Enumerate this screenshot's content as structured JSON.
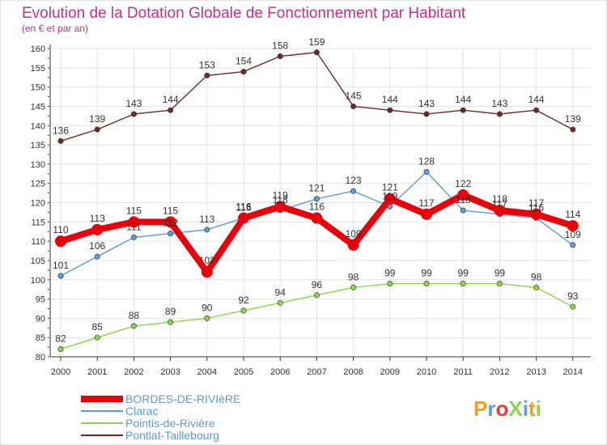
{
  "chart_data": {
    "type": "line",
    "title": "Evolution de la Dotation Globale de Fonctionnement par Habitant",
    "subtitle": "(en € et par an)",
    "xlabel": "",
    "ylabel": "",
    "ylim": [
      80,
      160
    ],
    "y_ticks": [
      80,
      85,
      90,
      95,
      100,
      105,
      110,
      115,
      120,
      125,
      130,
      135,
      140,
      145,
      150,
      155,
      160
    ],
    "grid": true,
    "legend_position": "bottom-left",
    "categories": [
      "2000",
      "2001",
      "2002",
      "2003",
      "2004",
      "2005",
      "2006",
      "2007",
      "2008",
      "2009",
      "2010",
      "2011",
      "2012",
      "2013",
      "2014"
    ],
    "series": [
      {
        "name": "Pontlat-Taillebourg",
        "color": "#6b2a2a",
        "emphasis": false,
        "values": [
          136,
          139,
          143,
          144,
          153,
          154,
          158,
          159,
          145,
          144,
          143,
          144,
          143,
          144,
          139
        ]
      },
      {
        "name": "Clarac",
        "color": "#5b9bd5",
        "emphasis": false,
        "values": [
          101,
          106,
          111,
          112,
          113,
          116,
          118,
          121,
          123,
          119,
          128,
          118,
          117,
          116,
          109
        ]
      },
      {
        "name": "Pointis-de-Rivière",
        "color": "#8fd14f",
        "emphasis": false,
        "values": [
          82,
          85,
          88,
          89,
          90,
          92,
          94,
          96,
          98,
          99,
          99,
          99,
          99,
          98,
          93
        ]
      },
      {
        "name": "BORDES-DE-RIVIèRE",
        "color": "#e8000b",
        "emphasis": true,
        "values": [
          110,
          113,
          115,
          115,
          102,
          116,
          119,
          116,
          109,
          121,
          117,
          122,
          118,
          117,
          114
        ]
      }
    ],
    "legend_order": [
      "BORDES-DE-RIVIèRE",
      "Clarac",
      "Pointis-de-Rivière",
      "Pontlat-Taillebourg"
    ]
  },
  "logo": {
    "text": "ProXiti"
  },
  "colors": {
    "title": "#c0338a",
    "axis": "#333333",
    "grid": "#e0e0e0",
    "tick_mark": "#cc0000"
  }
}
